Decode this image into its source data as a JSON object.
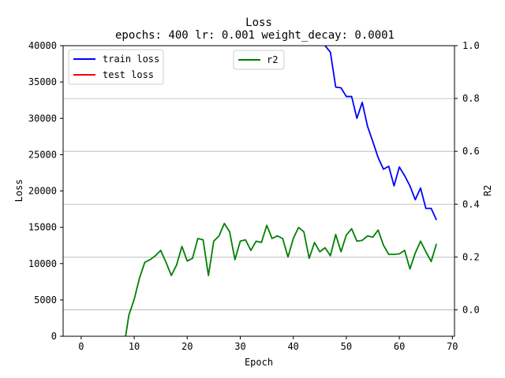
{
  "chart_data": {
    "type": "line",
    "title": "Loss",
    "subtitle": "epochs: 400 lr: 0.001 weight_decay: 0.0001",
    "xlabel": "Epoch",
    "ylabel_left": "Loss",
    "ylabel_right": "R2",
    "xlim": [
      -3.4,
      70.4
    ],
    "ylim_left": [
      0,
      40000
    ],
    "ylim_right": [
      -0.1,
      1.0
    ],
    "xticks": [
      0,
      10,
      20,
      30,
      40,
      50,
      60,
      70
    ],
    "yticks_left": [
      0,
      5000,
      10000,
      15000,
      20000,
      25000,
      30000,
      35000,
      40000
    ],
    "yticks_right": [
      0.0,
      0.2,
      0.4,
      0.6,
      0.8,
      1.0
    ],
    "ytick_labels_right": [
      "0.0",
      "0.2",
      "0.4",
      "0.6",
      "0.8",
      "1.0"
    ],
    "grid": "horizontal lines on right (R2) axis",
    "legend_left": {
      "placement": "upper-left",
      "entries": [
        "train loss",
        "test loss"
      ]
    },
    "legend_right": {
      "placement": "upper-center",
      "entries": [
        "r2"
      ]
    },
    "series": [
      {
        "name": "train loss",
        "axis": "left",
        "color": "#0000ff",
        "x": [
          45,
          46,
          47,
          48,
          49,
          50,
          51,
          52,
          53,
          54,
          55,
          56,
          57,
          58,
          59,
          60,
          61,
          62,
          63,
          64,
          65,
          66,
          67
        ],
        "values": [
          40500,
          40000,
          39100,
          34300,
          34200,
          33000,
          33000,
          30000,
          32200,
          28900,
          26800,
          24600,
          23000,
          23400,
          20700,
          23300,
          22100,
          20700,
          18800,
          20400,
          17600,
          17600,
          16000
        ]
      },
      {
        "name": "test loss",
        "axis": "left",
        "color": "#ff0000",
        "x": [],
        "values": []
      },
      {
        "name": "r2",
        "axis": "right",
        "color": "#008000",
        "x": [
          8,
          9,
          10,
          11,
          12,
          13,
          14,
          15,
          16,
          17,
          18,
          19,
          20,
          21,
          22,
          23,
          24,
          25,
          26,
          27,
          28,
          29,
          30,
          31,
          32,
          33,
          34,
          35,
          36,
          37,
          38,
          39,
          40,
          41,
          42,
          43,
          44,
          45,
          46,
          47,
          48,
          49,
          50,
          51,
          52,
          53,
          54,
          55,
          56,
          57,
          58,
          59,
          60,
          61,
          62,
          63,
          64,
          65,
          66,
          67
        ],
        "values": [
          -0.15,
          -0.02,
          0.04,
          0.12,
          0.18,
          0.19,
          0.205,
          0.225,
          0.18,
          0.13,
          0.17,
          0.24,
          0.185,
          0.195,
          0.27,
          0.265,
          0.13,
          0.26,
          0.28,
          0.327,
          0.295,
          0.19,
          0.26,
          0.265,
          0.225,
          0.26,
          0.255,
          0.32,
          0.27,
          0.28,
          0.27,
          0.2,
          0.27,
          0.312,
          0.295,
          0.195,
          0.255,
          0.22,
          0.235,
          0.205,
          0.285,
          0.22,
          0.283,
          0.307,
          0.26,
          0.263,
          0.28,
          0.275,
          0.302,
          0.245,
          0.21,
          0.21,
          0.212,
          0.225,
          0.155,
          0.215,
          0.26,
          0.22,
          0.183,
          0.25
        ]
      }
    ]
  }
}
